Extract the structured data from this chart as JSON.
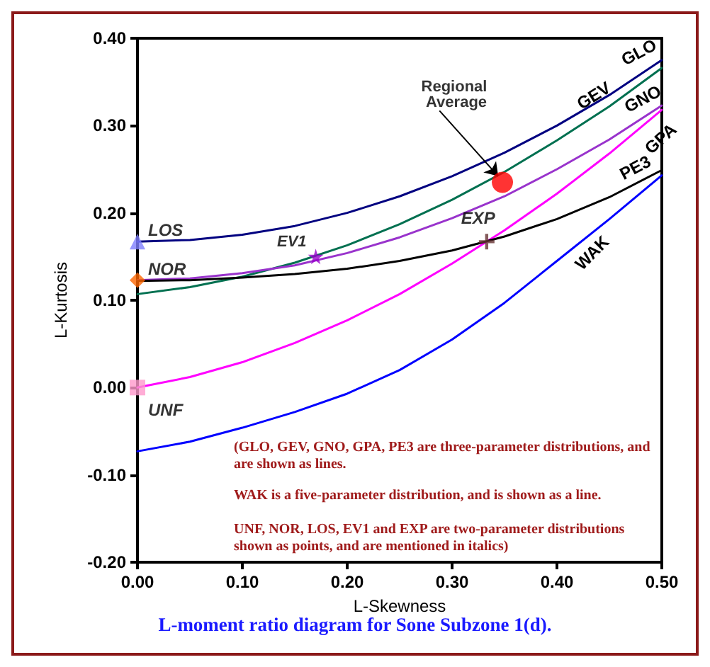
{
  "chart_data": {
    "type": "line",
    "title": "L-moment ratio diagram for Sone Subzone 1(d).",
    "xlabel": "L-Skewness",
    "ylabel": "L-Kurtosis",
    "xlim": [
      0,
      0.5
    ],
    "ylim": [
      -0.2,
      0.4
    ],
    "xticks": [
      {
        "value": 0,
        "label": "0.00"
      },
      {
        "value": 0.1,
        "label": "0.10"
      },
      {
        "value": 0.2,
        "label": "0.20"
      },
      {
        "value": 0.3,
        "label": "0.30"
      },
      {
        "value": 0.4,
        "label": "0.40"
      },
      {
        "value": 0.5,
        "label": "0.50"
      }
    ],
    "yticks": [
      {
        "value": -0.2,
        "label": "-0.20"
      },
      {
        "value": -0.1,
        "label": "-0.10"
      },
      {
        "value": 0,
        "label": "0.00"
      },
      {
        "value": 0.1,
        "label": "0.10"
      },
      {
        "value": 0.2,
        "label": "0.20"
      },
      {
        "value": 0.3,
        "label": "0.30"
      },
      {
        "value": 0.4,
        "label": "0.40"
      }
    ],
    "grid": false,
    "legend": false,
    "annotations": [
      "(GLO, GEV, GNO, GPA, PE3 are three-parameter distributions, and are shown as lines.",
      "WAK is a five-parameter distribution, and is shown as a line.",
      "UNF, NOR, LOS, EV1 and EXP are two-parameter distributions shown as points, and are mentioned in italics)"
    ],
    "series": [
      {
        "name": "GLO",
        "marker": "none",
        "color": "#000080",
        "x": [
          0,
          0.05,
          0.1,
          0.15,
          0.2,
          0.25,
          0.3,
          0.35,
          0.4,
          0.45,
          0.5
        ],
        "values": [
          0.167,
          0.169,
          0.175,
          0.185,
          0.2,
          0.219,
          0.242,
          0.269,
          0.3,
          0.335,
          0.375
        ]
      },
      {
        "name": "GEV",
        "marker": "none",
        "color": "#007050",
        "x": [
          0,
          0.05,
          0.1,
          0.15,
          0.2,
          0.25,
          0.3,
          0.35,
          0.4,
          0.45,
          0.5
        ],
        "values": [
          0.107,
          0.115,
          0.127,
          0.143,
          0.163,
          0.187,
          0.215,
          0.247,
          0.283,
          0.322,
          0.366
        ]
      },
      {
        "name": "GNO",
        "marker": "none",
        "color": "#9933cc",
        "x": [
          0,
          0.05,
          0.1,
          0.15,
          0.2,
          0.25,
          0.3,
          0.35,
          0.4,
          0.45,
          0.5
        ],
        "values": [
          0.123,
          0.125,
          0.131,
          0.14,
          0.154,
          0.172,
          0.194,
          0.219,
          0.25,
          0.284,
          0.323
        ]
      },
      {
        "name": "GPA",
        "marker": "none",
        "color": "#ff00ff",
        "x": [
          0,
          0.05,
          0.1,
          0.15,
          0.2,
          0.25,
          0.3,
          0.35,
          0.4,
          0.45,
          0.5
        ],
        "values": [
          0,
          0.012,
          0.029,
          0.051,
          0.077,
          0.107,
          0.142,
          0.18,
          0.222,
          0.268,
          0.318
        ]
      },
      {
        "name": "PE3",
        "marker": "none",
        "color": "#000000",
        "x": [
          0,
          0.05,
          0.1,
          0.15,
          0.2,
          0.25,
          0.3,
          0.35,
          0.4,
          0.45,
          0.5
        ],
        "values": [
          0.122,
          0.123,
          0.126,
          0.13,
          0.136,
          0.145,
          0.157,
          0.173,
          0.193,
          0.218,
          0.249
        ]
      },
      {
        "name": "WAK",
        "marker": "none",
        "color": "#0000ff",
        "x": [
          0,
          0.05,
          0.1,
          0.15,
          0.2,
          0.25,
          0.3,
          0.35,
          0.4,
          0.45,
          0.5
        ],
        "values": [
          -0.073,
          -0.062,
          -0.046,
          -0.028,
          -0.007,
          0.02,
          0.055,
          0.097,
          0.145,
          0.193,
          0.243
        ]
      },
      {
        "name": "LOS",
        "type": "scatter",
        "marker": "triangle",
        "color": "#7f7fff",
        "x": [
          0
        ],
        "values": [
          0.167
        ]
      },
      {
        "name": "NOR",
        "type": "scatter",
        "marker": "diamond",
        "color": "#ff6600",
        "x": [
          0
        ],
        "values": [
          0.123
        ]
      },
      {
        "name": "UNF",
        "type": "scatter",
        "marker": "square",
        "color": "#ff99cc",
        "x": [
          0
        ],
        "values": [
          0
        ]
      },
      {
        "name": "EV1",
        "type": "scatter",
        "marker": "star",
        "color": "#9900cc",
        "x": [
          0.17
        ],
        "values": [
          0.15
        ]
      },
      {
        "name": "EXP",
        "type": "scatter",
        "marker": "cross",
        "color": "#663333",
        "x": [
          0.333
        ],
        "values": [
          0.167
        ]
      },
      {
        "name": "Regional Average",
        "type": "scatter",
        "marker": "circle",
        "color": "#ff0000",
        "x": [
          0.348
        ],
        "values": [
          0.235
        ]
      }
    ]
  }
}
